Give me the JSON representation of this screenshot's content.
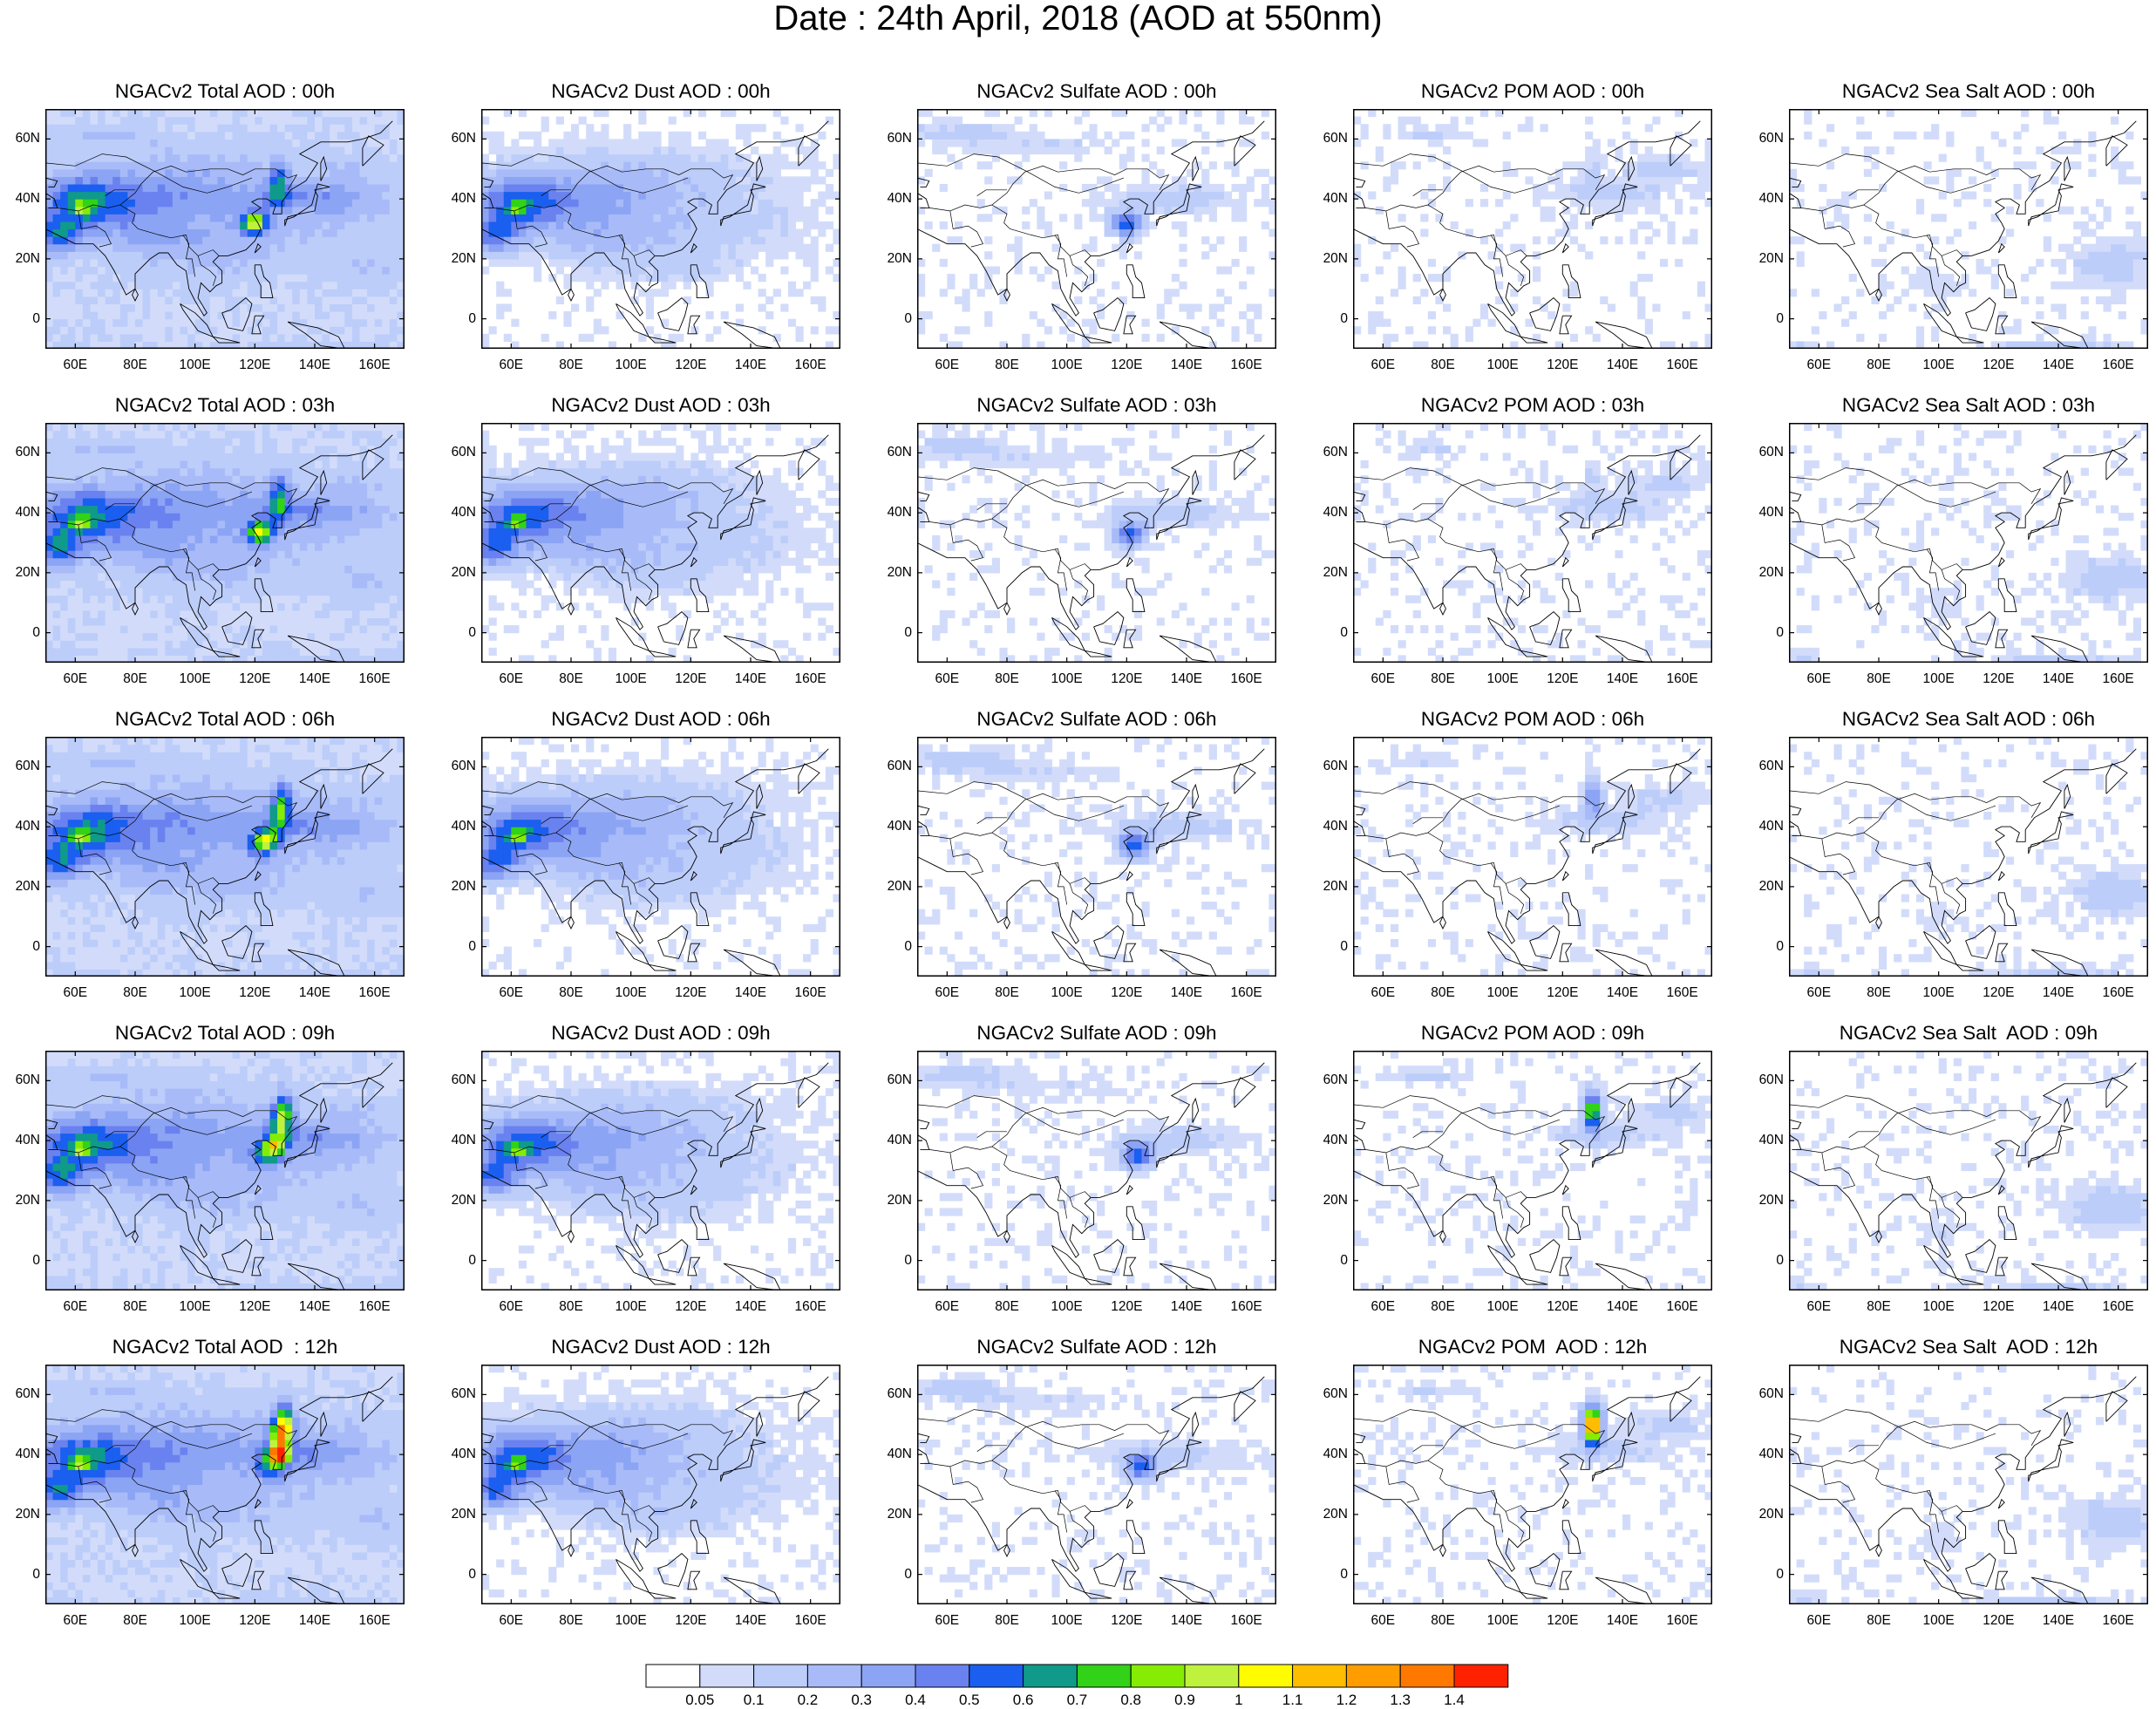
{
  "title": "Date : 24th April, 2018 (AOD at 550nm)",
  "panels": [
    [
      "NGACv2 Total AOD : 00h",
      "NGACv2 Dust AOD : 00h",
      "NGACv2 Sulfate AOD : 00h",
      "NGACv2 POM AOD : 00h",
      "NGACv2 Sea Salt AOD : 00h"
    ],
    [
      "NGACv2 Total AOD : 03h",
      "NGACv2 Dust AOD : 03h",
      "NGACv2 Sulfate AOD : 03h",
      "NGACv2 POM AOD : 03h",
      "NGACv2 Sea Salt AOD : 03h"
    ],
    [
      "NGACv2 Total AOD : 06h",
      "NGACv2 Dust AOD : 06h",
      "NGACv2 Sulfate AOD : 06h",
      "NGACv2 POM AOD : 06h",
      "NGACv2 Sea Salt AOD : 06h"
    ],
    [
      "NGACv2 Total AOD : 09h",
      "NGACv2 Dust AOD : 09h",
      "NGACv2 Sulfate AOD : 09h",
      "NGACv2 POM AOD : 09h",
      "NGACv2 Sea Salt  AOD : 09h"
    ],
    [
      "NGACv2 Total AOD  : 12h",
      "NGACv2 Dust AOD : 12h",
      "NGACv2 Sulfate AOD : 12h",
      "NGACv2 POM  AOD : 12h",
      "NGACv2 Sea Salt  AOD : 12h"
    ]
  ],
  "chart_data": {
    "type": "heatmap",
    "variable": "AOD at 550nm",
    "hours": [
      "00h",
      "03h",
      "06h",
      "09h",
      "12h"
    ],
    "species": [
      "Total",
      "Dust",
      "Sulfate",
      "POM",
      "Sea Salt"
    ],
    "lon_ticks": [
      "60E",
      "80E",
      "100E",
      "120E",
      "140E",
      "160E"
    ],
    "lon_tick_values": [
      60,
      80,
      100,
      120,
      140,
      160
    ],
    "lat_ticks": [
      "60N",
      "40N",
      "20N",
      "0"
    ],
    "lat_tick_values": [
      60,
      40,
      20,
      0
    ],
    "xlim": [
      50,
      170
    ],
    "ylim": [
      -10,
      70
    ],
    "colorbar": {
      "labels": [
        "0.05",
        "0.1",
        "0.2",
        "0.3",
        "0.4",
        "0.5",
        "0.6",
        "0.7",
        "0.8",
        "0.9",
        "1",
        "1.1",
        "1.2",
        "1.3",
        "1.4"
      ],
      "colors": [
        "#ffffff",
        "#d2dcfa",
        "#bccdfa",
        "#a8bbf8",
        "#8ca4f4",
        "#6a82ef",
        "#1a5fef",
        "#0f9a8a",
        "#31d218",
        "#86ec04",
        "#bff23c",
        "#fffc00",
        "#ffbd00",
        "#ff9c00",
        "#ff7800",
        "#ff2200"
      ]
    },
    "max_values": {
      "Total": [
        0.95,
        1.0,
        1.05,
        1.05,
        1.4
      ],
      "Dust": [
        0.65,
        0.65,
        0.65,
        0.65,
        0.65
      ],
      "Sulfate": [
        0.65,
        0.65,
        0.6,
        0.6,
        0.6
      ],
      "POM": [
        0.1,
        0.1,
        0.5,
        0.9,
        1.4
      ],
      "Sea Salt": [
        0.2,
        0.2,
        0.2,
        0.2,
        0.2
      ]
    }
  }
}
